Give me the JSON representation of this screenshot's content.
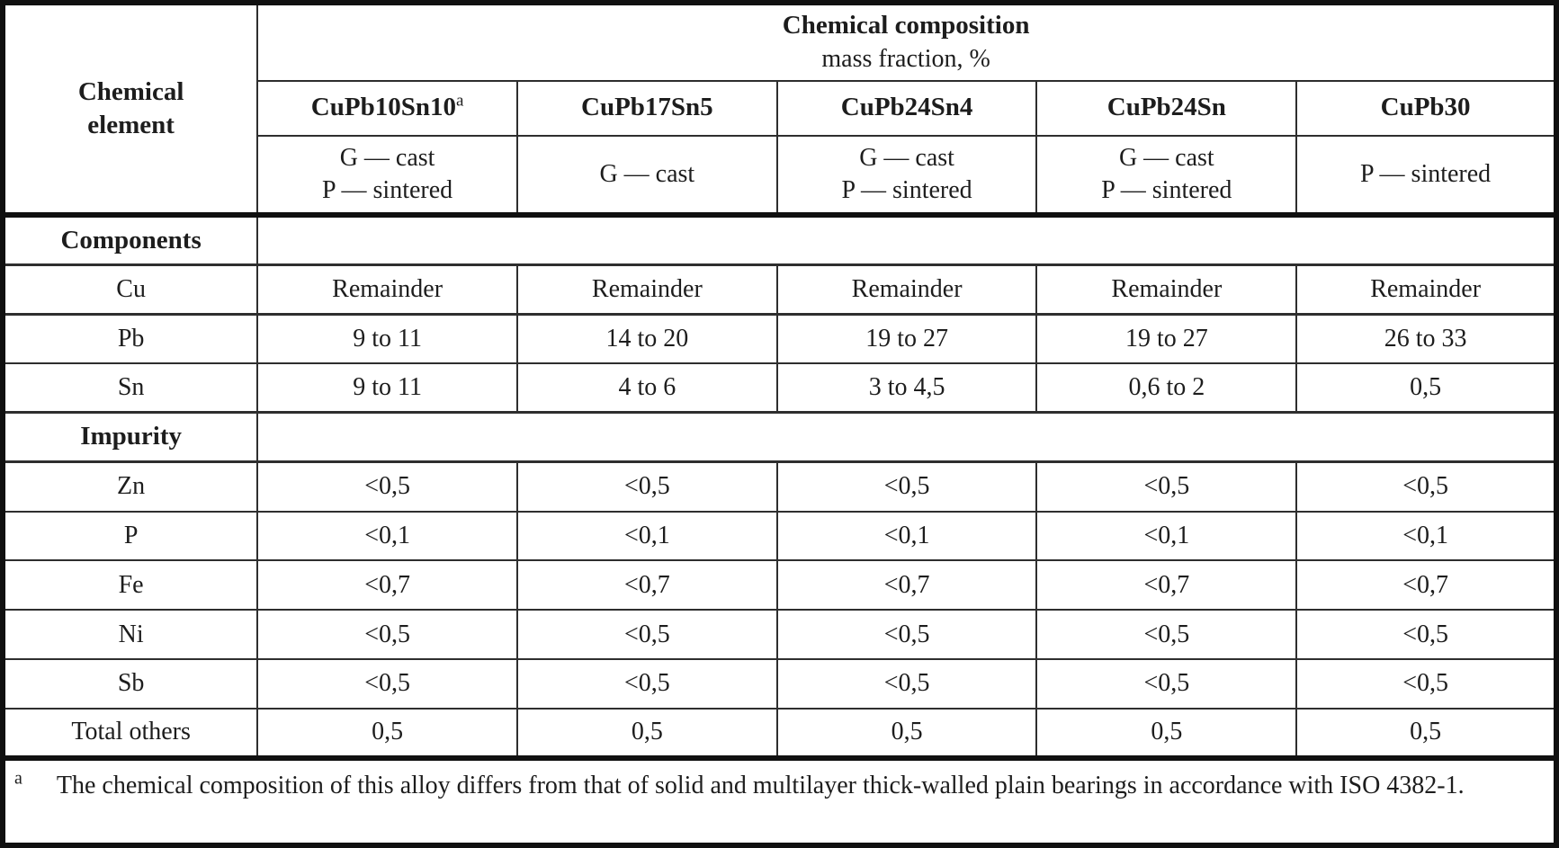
{
  "colors": {
    "background": "#ffffff",
    "text": "#1d1d1d",
    "border_thin": "#2e2e2e",
    "border_thick": "#101010"
  },
  "table": {
    "corner_header": "Chemical\nelement",
    "group_header": {
      "title": "Chemical composition",
      "subtitle": "mass fraction, %"
    },
    "columns": [
      {
        "name": "CuPb10Sn10",
        "sup": "a",
        "process": "G — cast\nP — sintered"
      },
      {
        "name": "CuPb17Sn5",
        "sup": "",
        "process": "G — cast"
      },
      {
        "name": "CuPb24Sn4",
        "sup": "",
        "process": "G — cast\nP — sintered"
      },
      {
        "name": "CuPb24Sn",
        "sup": "",
        "process": "G — cast\nP — sintered"
      },
      {
        "name": "CuPb30",
        "sup": "",
        "process": "P — sintered"
      }
    ],
    "sections": [
      {
        "label": "Components",
        "rows": [
          {
            "element": "Cu",
            "values": [
              "Remainder",
              "Remainder",
              "Remainder",
              "Remainder",
              "Remainder"
            ]
          },
          {
            "element": "Pb",
            "values": [
              "9 to 11",
              "14 to 20",
              "19 to 27",
              "19 to 27",
              "26 to 33"
            ]
          },
          {
            "element": "Sn",
            "values": [
              "9 to 11",
              "4 to 6",
              "3 to 4,5",
              "0,6 to 2",
              "0,5"
            ]
          }
        ]
      },
      {
        "label": "Impurity",
        "rows": [
          {
            "element": "Zn",
            "values": [
              "<0,5",
              "<0,5",
              "<0,5",
              "<0,5",
              "<0,5"
            ]
          },
          {
            "element": "P",
            "values": [
              "<0,1",
              "<0,1",
              "<0,1",
              "<0,1",
              "<0,1"
            ]
          },
          {
            "element": "Fe",
            "values": [
              "<0,7",
              "<0,7",
              "<0,7",
              "<0,7",
              "<0,7"
            ]
          },
          {
            "element": "Ni",
            "values": [
              "<0,5",
              "<0,5",
              "<0,5",
              "<0,5",
              "<0,5"
            ]
          },
          {
            "element": "Sb",
            "values": [
              "<0,5",
              "<0,5",
              "<0,5",
              "<0,5",
              "<0,5"
            ]
          },
          {
            "element": "Total others",
            "values": [
              "0,5",
              "0,5",
              "0,5",
              "0,5",
              "0,5"
            ]
          }
        ]
      }
    ],
    "footnote": {
      "marker": "a",
      "text": "The chemical composition of this alloy differs from that of solid and multilayer thick-walled plain bearings in accordance with ISO 4382-1."
    }
  }
}
